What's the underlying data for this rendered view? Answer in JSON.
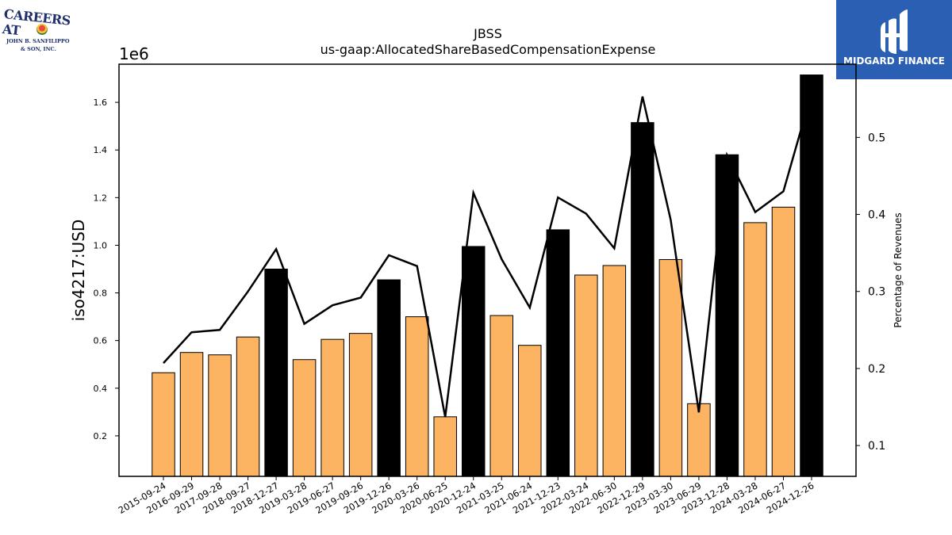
{
  "title_line1": "JBSS",
  "title_line2": "us-gaap:AllocatedShareBasedCompensationExpense",
  "logos": {
    "left": {
      "line1": "CAREERS AT",
      "line2": "JOHN B. SANFILIPPO",
      "line3": "& SON, INC."
    },
    "right": {
      "name": "MIDGARD FINANCE"
    }
  },
  "colors": {
    "quarter_bar": "#fdb462",
    "annual_bar": "#000000",
    "line": "#000000"
  },
  "chart_data": {
    "type": "bar",
    "title": "JBSS\nus-gaap:AllocatedShareBasedCompensationExpense",
    "ylabel": "iso4217:USD",
    "y_scale_label": "1e6",
    "y2label": "Percentage of Revenues",
    "ylim": [
      0.03,
      1.76
    ],
    "y2lim": [
      0.06,
      0.595
    ],
    "yticks": [
      "0.2",
      "0.4",
      "0.6",
      "0.8",
      "1.0",
      "1.2",
      "1.4",
      "1.6"
    ],
    "y2ticks": [
      "0.1",
      "0.2",
      "0.3",
      "0.4",
      "0.5"
    ],
    "categories": [
      "2015-09-24",
      "2016-09-29",
      "2017-09-28",
      "2018-09-27",
      "2018-12-27",
      "2019-03-28",
      "2019-06-27",
      "2019-09-26",
      "2019-12-26",
      "2020-03-26",
      "2020-06-25",
      "2020-12-24",
      "2021-03-25",
      "2021-06-24",
      "2021-12-23",
      "2022-03-24",
      "2022-06-30",
      "2022-12-29",
      "2023-03-30",
      "2023-06-29",
      "2023-12-28",
      "2024-03-28",
      "2024-06-27",
      "2024-12-26"
    ],
    "series": [
      {
        "kind": "bar",
        "values": [
          0.465,
          0.55,
          0.54,
          0.615,
          0.9,
          0.52,
          0.605,
          0.63,
          0.855,
          0.7,
          0.28,
          0.995,
          0.705,
          0.58,
          1.065,
          0.875,
          0.915,
          1.515,
          0.94,
          0.335,
          1.38,
          1.095,
          1.16,
          1.715
        ],
        "annual": [
          false,
          false,
          false,
          false,
          true,
          false,
          false,
          false,
          true,
          false,
          false,
          true,
          false,
          false,
          true,
          false,
          false,
          true,
          false,
          false,
          true,
          false,
          false,
          true
        ]
      },
      {
        "kind": "line",
        "axis": "right",
        "values": [
          0.207,
          0.247,
          0.25,
          0.3,
          0.355,
          0.258,
          0.282,
          0.292,
          0.347,
          0.333,
          0.137,
          0.428,
          0.342,
          0.279,
          0.422,
          0.401,
          0.356,
          0.553,
          0.393,
          0.143,
          0.477,
          0.403,
          0.43,
          0.558
        ]
      }
    ]
  }
}
